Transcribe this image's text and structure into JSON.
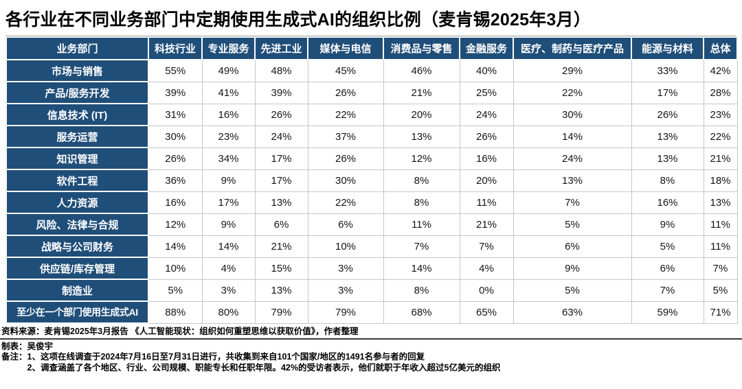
{
  "title": "各行业在不同业务部门中定期使用生成式AI的组织比例（麦肯锡2025年3月）",
  "colors": {
    "header_blue": "#1F4E79",
    "grid_gray": "#c6c6c6",
    "text_black": "#000000",
    "cell_text": "#141414"
  },
  "chart_data": {
    "type": "table",
    "title": "各行业在不同业务部门中定期使用生成式AI的组织比例（麦肯锡2025年3月）",
    "columns": [
      "业务部门",
      "科技行业",
      "专业服务",
      "先进工业",
      "媒体与电信",
      "消费品与零售",
      "金融服务",
      "医疗、制药与医疗产品",
      "能源与材料",
      "总体"
    ],
    "rows": [
      {
        "label": "市场与销售",
        "values": [
          "55%",
          "49%",
          "48%",
          "45%",
          "46%",
          "40%",
          "29%",
          "33%",
          "42%"
        ]
      },
      {
        "label": "产品/服务开发",
        "values": [
          "39%",
          "41%",
          "39%",
          "26%",
          "21%",
          "25%",
          "22%",
          "17%",
          "28%"
        ]
      },
      {
        "label": "信息技术 (IT)",
        "values": [
          "31%",
          "16%",
          "26%",
          "22%",
          "20%",
          "24%",
          "30%",
          "26%",
          "23%"
        ]
      },
      {
        "label": "服务运营",
        "values": [
          "30%",
          "23%",
          "24%",
          "37%",
          "13%",
          "26%",
          "14%",
          "13%",
          "22%"
        ]
      },
      {
        "label": "知识管理",
        "values": [
          "26%",
          "34%",
          "17%",
          "26%",
          "12%",
          "16%",
          "24%",
          "13%",
          "21%"
        ]
      },
      {
        "label": "软件工程",
        "values": [
          "36%",
          "9%",
          "17%",
          "30%",
          "8%",
          "20%",
          "13%",
          "8%",
          "18%"
        ]
      },
      {
        "label": "人力资源",
        "values": [
          "16%",
          "17%",
          "13%",
          "22%",
          "8%",
          "11%",
          "7%",
          "16%",
          "13%"
        ]
      },
      {
        "label": "风险、法律与合规",
        "values": [
          "12%",
          "9%",
          "6%",
          "6%",
          "11%",
          "21%",
          "5%",
          "9%",
          "11%"
        ]
      },
      {
        "label": "战略与公司财务",
        "values": [
          "14%",
          "14%",
          "21%",
          "10%",
          "7%",
          "7%",
          "6%",
          "5%",
          "11%"
        ]
      },
      {
        "label": "供应链/库存管理",
        "values": [
          "10%",
          "4%",
          "15%",
          "3%",
          "14%",
          "4%",
          "9%",
          "6%",
          "7%"
        ]
      },
      {
        "label": "制造业",
        "values": [
          "5%",
          "3%",
          "13%",
          "3%",
          "8%",
          "0%",
          "5%",
          "7%",
          "5%"
        ]
      },
      {
        "label": "至少在一个部门使用生成式AI",
        "values": [
          "88%",
          "80%",
          "79%",
          "79%",
          "68%",
          "65%",
          "63%",
          "59%",
          "71%"
        ]
      }
    ]
  },
  "footer": {
    "source": "资料来源：麦肯锡2025年3月报告 《人工智能现状：组织如何重塑思维以获取价值》，作者整理",
    "author": "制表：吴俊宇",
    "notes_label": "备注：",
    "notes": [
      "1、这项在线调查于2024年7月16日至7月31日进行，共收集到来自101个国家/地区的1491名参与者的回复",
      "2、调查涵盖了各个地区、行业、公司规模、职能专长和任职年限。42%的受访者表示，他们就职于年收入超过5亿美元的组织"
    ]
  }
}
